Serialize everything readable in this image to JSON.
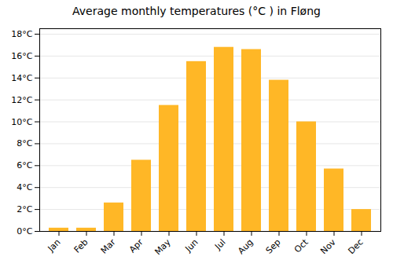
{
  "chart_data": {
    "type": "bar",
    "title": "Average monthly temperatures (°C ) in Fløng",
    "categories": [
      "Jan",
      "Feb",
      "Mar",
      "Apr",
      "May",
      "Jun",
      "Jul",
      "Aug",
      "Sep",
      "Oct",
      "Nov",
      "Dec"
    ],
    "values": [
      0.3,
      0.3,
      2.6,
      6.5,
      11.5,
      15.5,
      16.8,
      16.6,
      13.8,
      10.0,
      5.7,
      2.0
    ],
    "color": "#FFB726",
    "ylim": [
      0,
      18.5
    ],
    "yticks": [
      {
        "value": 0,
        "label": "0°C"
      },
      {
        "value": 2,
        "label": "2°C"
      },
      {
        "value": 4,
        "label": "4°C"
      },
      {
        "value": 6,
        "label": "6°C"
      },
      {
        "value": 8,
        "label": "8°C"
      },
      {
        "value": 10,
        "label": "10°C"
      },
      {
        "value": 12,
        "label": "12°C"
      },
      {
        "value": 14,
        "label": "14°C"
      },
      {
        "value": 16,
        "label": "16°C"
      },
      {
        "value": 18,
        "label": "18°C"
      }
    ],
    "grid": true
  }
}
